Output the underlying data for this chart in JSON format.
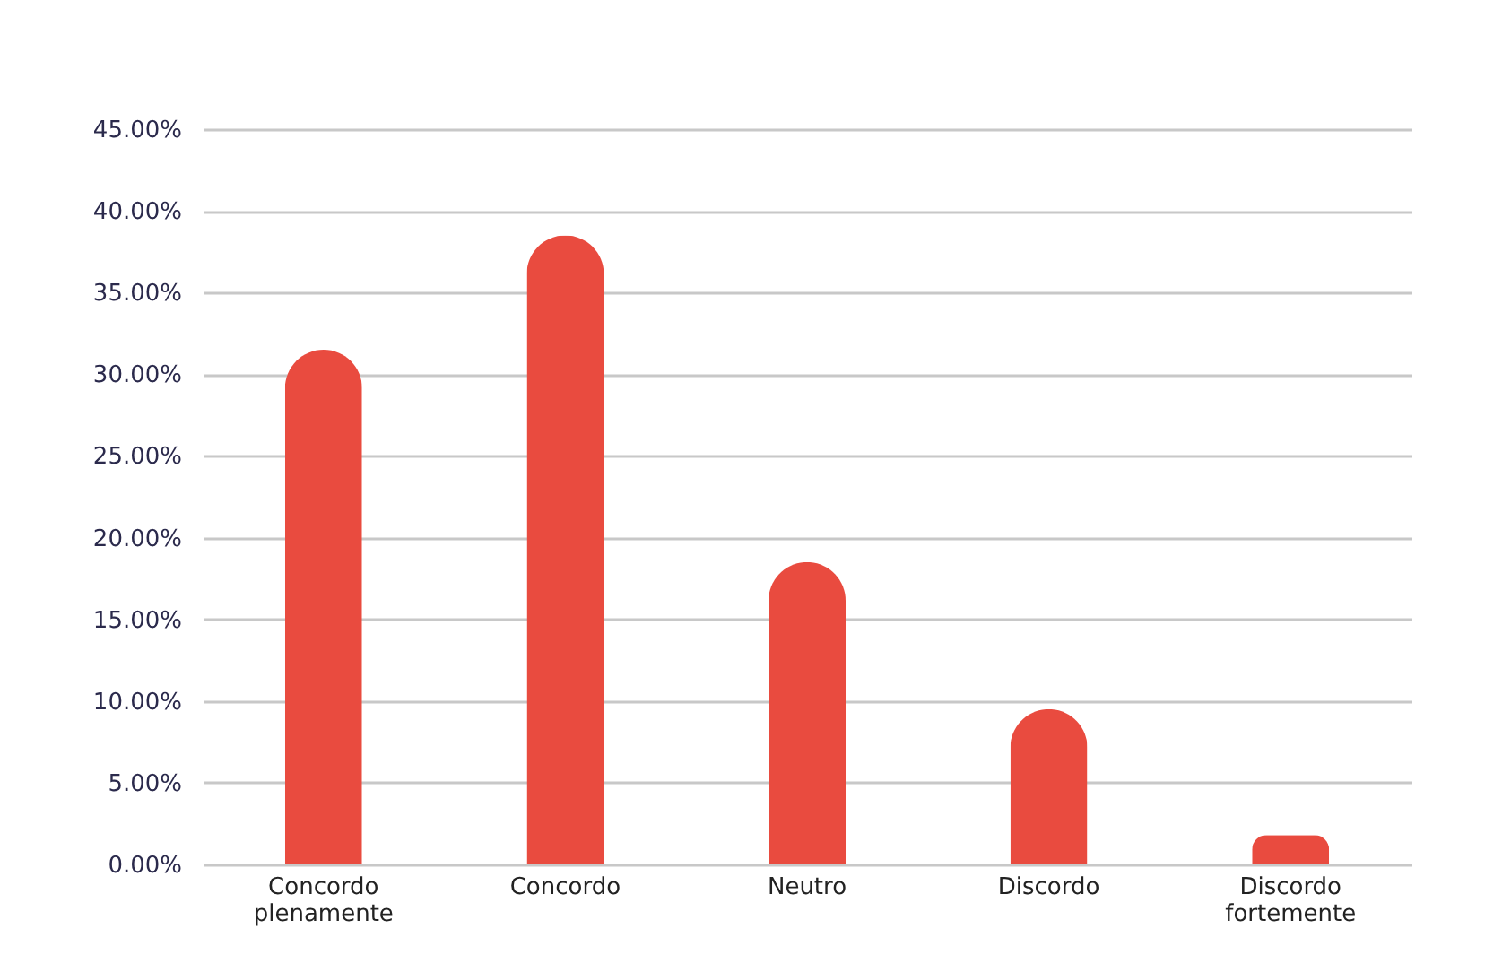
{
  "chart_data": {
    "type": "bar",
    "categories": [
      "Concordo plenamente",
      "Concordo",
      "Neutro",
      "Discordo",
      "Discordo fortemente"
    ],
    "values": [
      31.5,
      38.5,
      18.5,
      9.5,
      1.8
    ],
    "color": "#e94b3f",
    "ylim": [
      0,
      45
    ],
    "yticks": [
      {
        "value": 0,
        "label": "0.00%"
      },
      {
        "value": 5,
        "label": "5.00%"
      },
      {
        "value": 10,
        "label": "10.00%"
      },
      {
        "value": 15,
        "label": "15.00%"
      },
      {
        "value": 20,
        "label": "20.00%"
      },
      {
        "value": 25,
        "label": "25.00%"
      },
      {
        "value": 30,
        "label": "30.00%"
      },
      {
        "value": 35,
        "label": "35.00%"
      },
      {
        "value": 40,
        "label": "40.00%"
      },
      {
        "value": 45,
        "label": "45.00%"
      }
    ],
    "grid": "y"
  }
}
